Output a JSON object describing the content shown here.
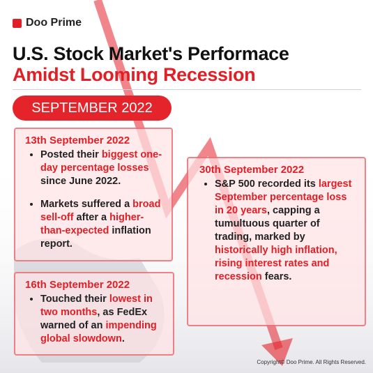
{
  "brand": "Doo Prime",
  "title": {
    "line1": "U.S. Stock Market's Performace",
    "line2": "Amidst Looming Recession"
  },
  "badge": "SEPTEMBER 2022",
  "cards": [
    {
      "date": "13th September 2022",
      "bullets": [
        [
          {
            "text": "Posted their ",
            "highlight": false
          },
          {
            "text": "biggest one-day percentage losses",
            "highlight": true
          },
          {
            "text": " since June 2022.",
            "highlight": false
          }
        ],
        [
          {
            "text": "Markets suffered a ",
            "highlight": false
          },
          {
            "text": "broad sell-off",
            "highlight": true
          },
          {
            "text": " after a ",
            "highlight": false
          },
          {
            "text": "higher-than-expected",
            "highlight": true
          },
          {
            "text": " inflation report.",
            "highlight": false
          }
        ]
      ]
    },
    {
      "date": "16th September 2022",
      "bullets": [
        [
          {
            "text": "Touched their ",
            "highlight": false
          },
          {
            "text": "lowest in two months",
            "highlight": true
          },
          {
            "text": ", as FedEx warned of an ",
            "highlight": false
          },
          {
            "text": "impending global slowdown",
            "highlight": true
          },
          {
            "text": ".",
            "highlight": false
          }
        ]
      ]
    },
    {
      "date": "30th September 2022",
      "bullets": [
        [
          {
            "text": "S&P 500 recorded its ",
            "highlight": false
          },
          {
            "text": "largest September percentage loss in 20 years",
            "highlight": true
          },
          {
            "text": ", capping a tumultuous quarter of trading, marked by ",
            "highlight": false
          },
          {
            "text": "historically high inflation, rising interest rates and recession",
            "highlight": true
          },
          {
            "text": " fears.",
            "highlight": false
          }
        ]
      ]
    }
  ],
  "copyright": "Copyright© Doo Prime. All Rights Reserved."
}
